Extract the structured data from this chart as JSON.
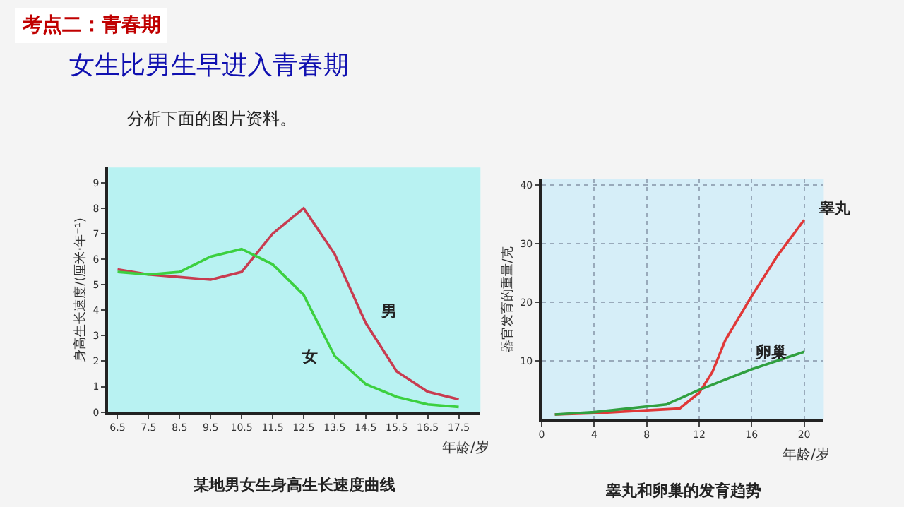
{
  "chart_data": [
    {
      "type": "other",
      "title": "考点二：青春期",
      "subtitle": "女生比男生早进入青春期",
      "annotations": [
        "分析下面的图片资料。"
      ]
    },
    {
      "type": "line",
      "title": "某地男女生身高生长速度曲线",
      "xlabel": "年龄/岁",
      "ylabel": "身高生长速度/(厘米·年⁻¹)",
      "x": [
        6.5,
        7.5,
        8.5,
        9.5,
        10.5,
        11.5,
        12.5,
        13.5,
        14.5,
        15.5,
        16.5,
        17.5
      ],
      "series": [
        {
          "name": "男",
          "color": "#c83c50",
          "values": [
            5.6,
            5.4,
            5.3,
            5.2,
            5.5,
            7.0,
            8.0,
            6.2,
            3.5,
            1.6,
            0.8,
            0.5
          ]
        },
        {
          "name": "女",
          "color": "#3cd040",
          "values": [
            5.5,
            5.4,
            5.5,
            6.1,
            6.4,
            5.8,
            4.6,
            2.2,
            1.1,
            0.6,
            0.3,
            0.2
          ]
        }
      ],
      "xlim": [
        6.2,
        18.2
      ],
      "ylim": [
        0,
        9.6
      ],
      "xticks": [
        6.5,
        7.5,
        8.5,
        9.5,
        10.5,
        11.5,
        12.5,
        13.5,
        14.5,
        15.5,
        16.5,
        17.5
      ],
      "yticks": [
        0,
        1,
        2,
        3,
        4,
        5,
        6,
        7,
        8,
        9
      ],
      "grid": false,
      "marker": "none",
      "line_style": "solid"
    },
    {
      "type": "line",
      "title": "睾丸和卵巢的发育趋势",
      "xlabel": "年龄/岁",
      "ylabel": "器官发育的重量/克",
      "series": [
        {
          "name": "睾丸",
          "color": "#e03838",
          "x": [
            1,
            4,
            8,
            10.5,
            12,
            13,
            14,
            16,
            18,
            20
          ],
          "values": [
            0.8,
            1.0,
            1.5,
            1.8,
            4.5,
            8,
            13.5,
            21,
            28,
            34
          ]
        },
        {
          "name": "卵巢",
          "color": "#30a040",
          "x": [
            1,
            4,
            9.5,
            12,
            16,
            20
          ],
          "values": [
            0.8,
            1.2,
            2.5,
            5,
            8.5,
            11.5
          ]
        }
      ],
      "xlim": [
        0,
        21.5
      ],
      "ylim": [
        0,
        41
      ],
      "xticks": [
        0,
        4,
        8,
        12,
        16,
        20
      ],
      "yticks": [
        10,
        20,
        30,
        40
      ],
      "grid": true,
      "marker": "none",
      "line_style": "solid"
    }
  ]
}
